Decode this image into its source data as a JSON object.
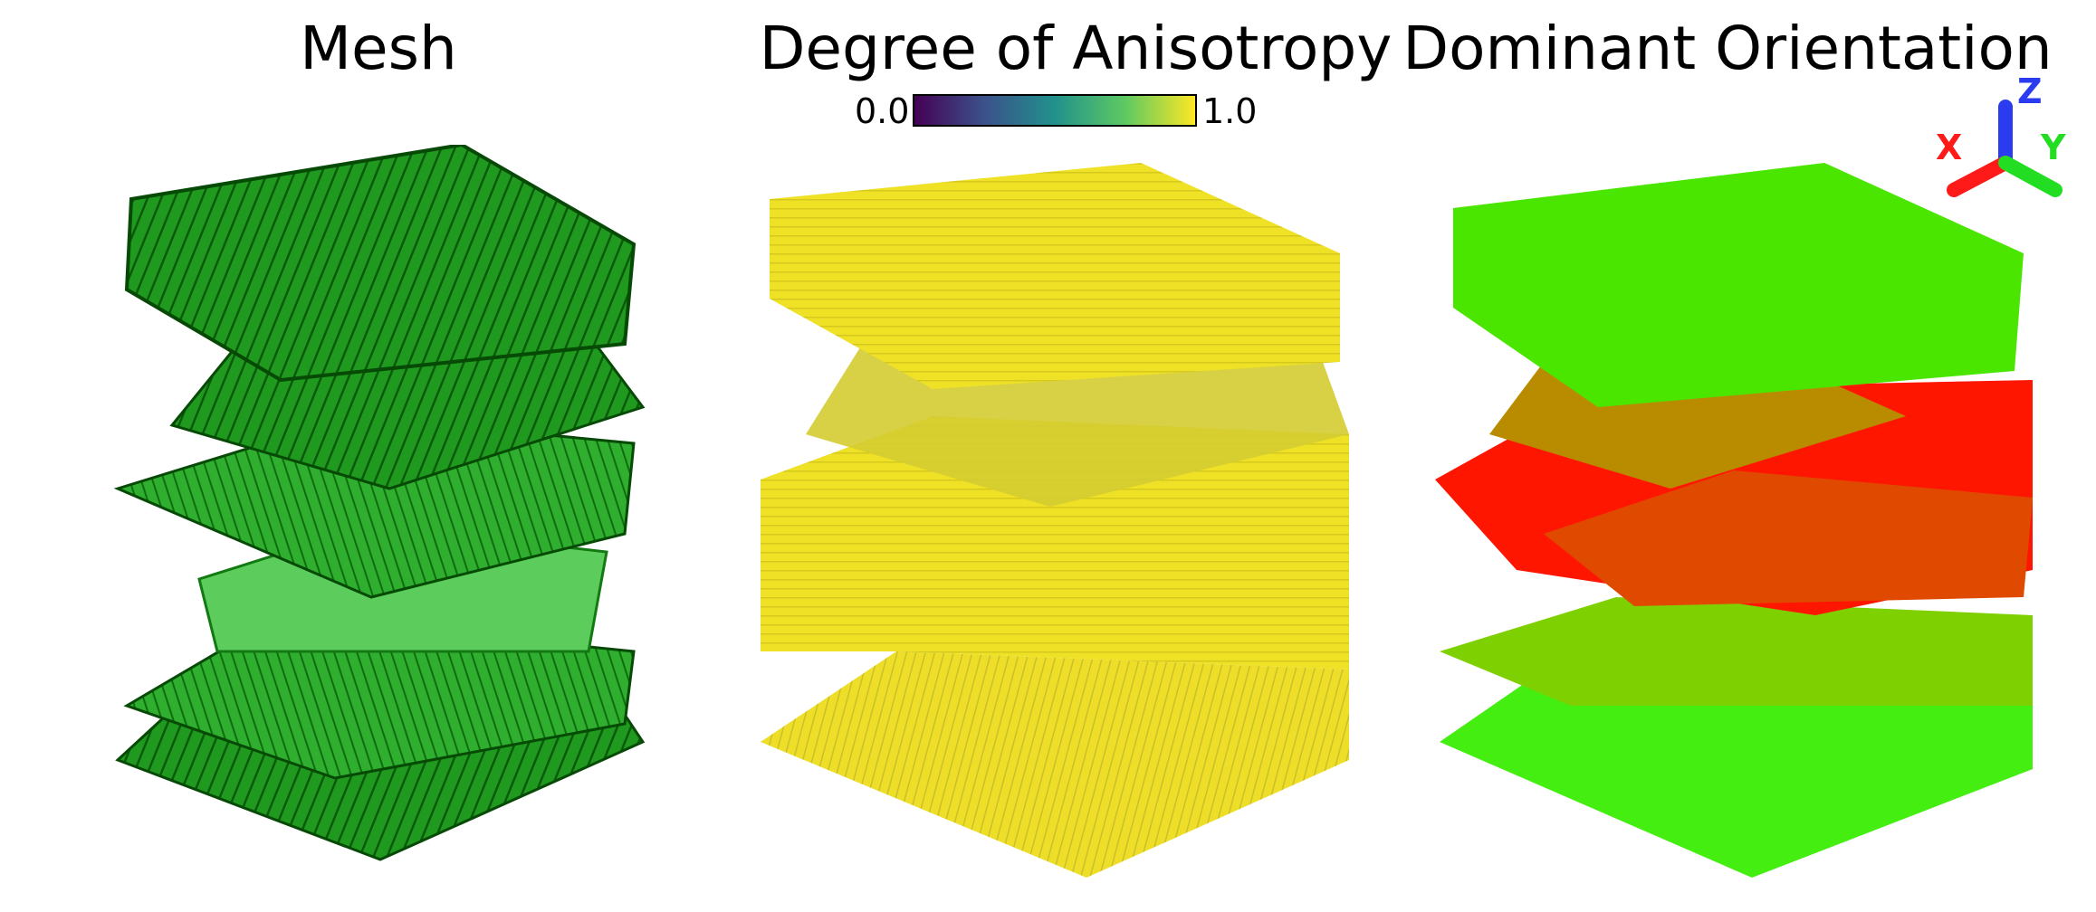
{
  "panels": {
    "mesh": {
      "title": "Mesh"
    },
    "anisotropy": {
      "title": "Degree of Anisotropy",
      "colorbar": {
        "min_label": "0.0",
        "max_label": "1.0",
        "colormap": "viridis"
      }
    },
    "orientation": {
      "title": "Dominant Orientation"
    }
  },
  "axes_triad": {
    "x": {
      "label": "X",
      "color": "#ff1a1a"
    },
    "y": {
      "label": "Y",
      "color": "#22dd22"
    },
    "z": {
      "label": "Z",
      "color": "#2b3bf0"
    }
  },
  "colors": {
    "mesh_dark": "#0b6a0b",
    "mesh_mid": "#1f9a1f",
    "mesh_light": "#55d055",
    "aniso_yellow": "#efe125",
    "aniso_shadow": "#c9c22a",
    "orient_green": "#4ae600",
    "orient_red": "#ff1a00",
    "orient_orange": "#e05a00"
  }
}
